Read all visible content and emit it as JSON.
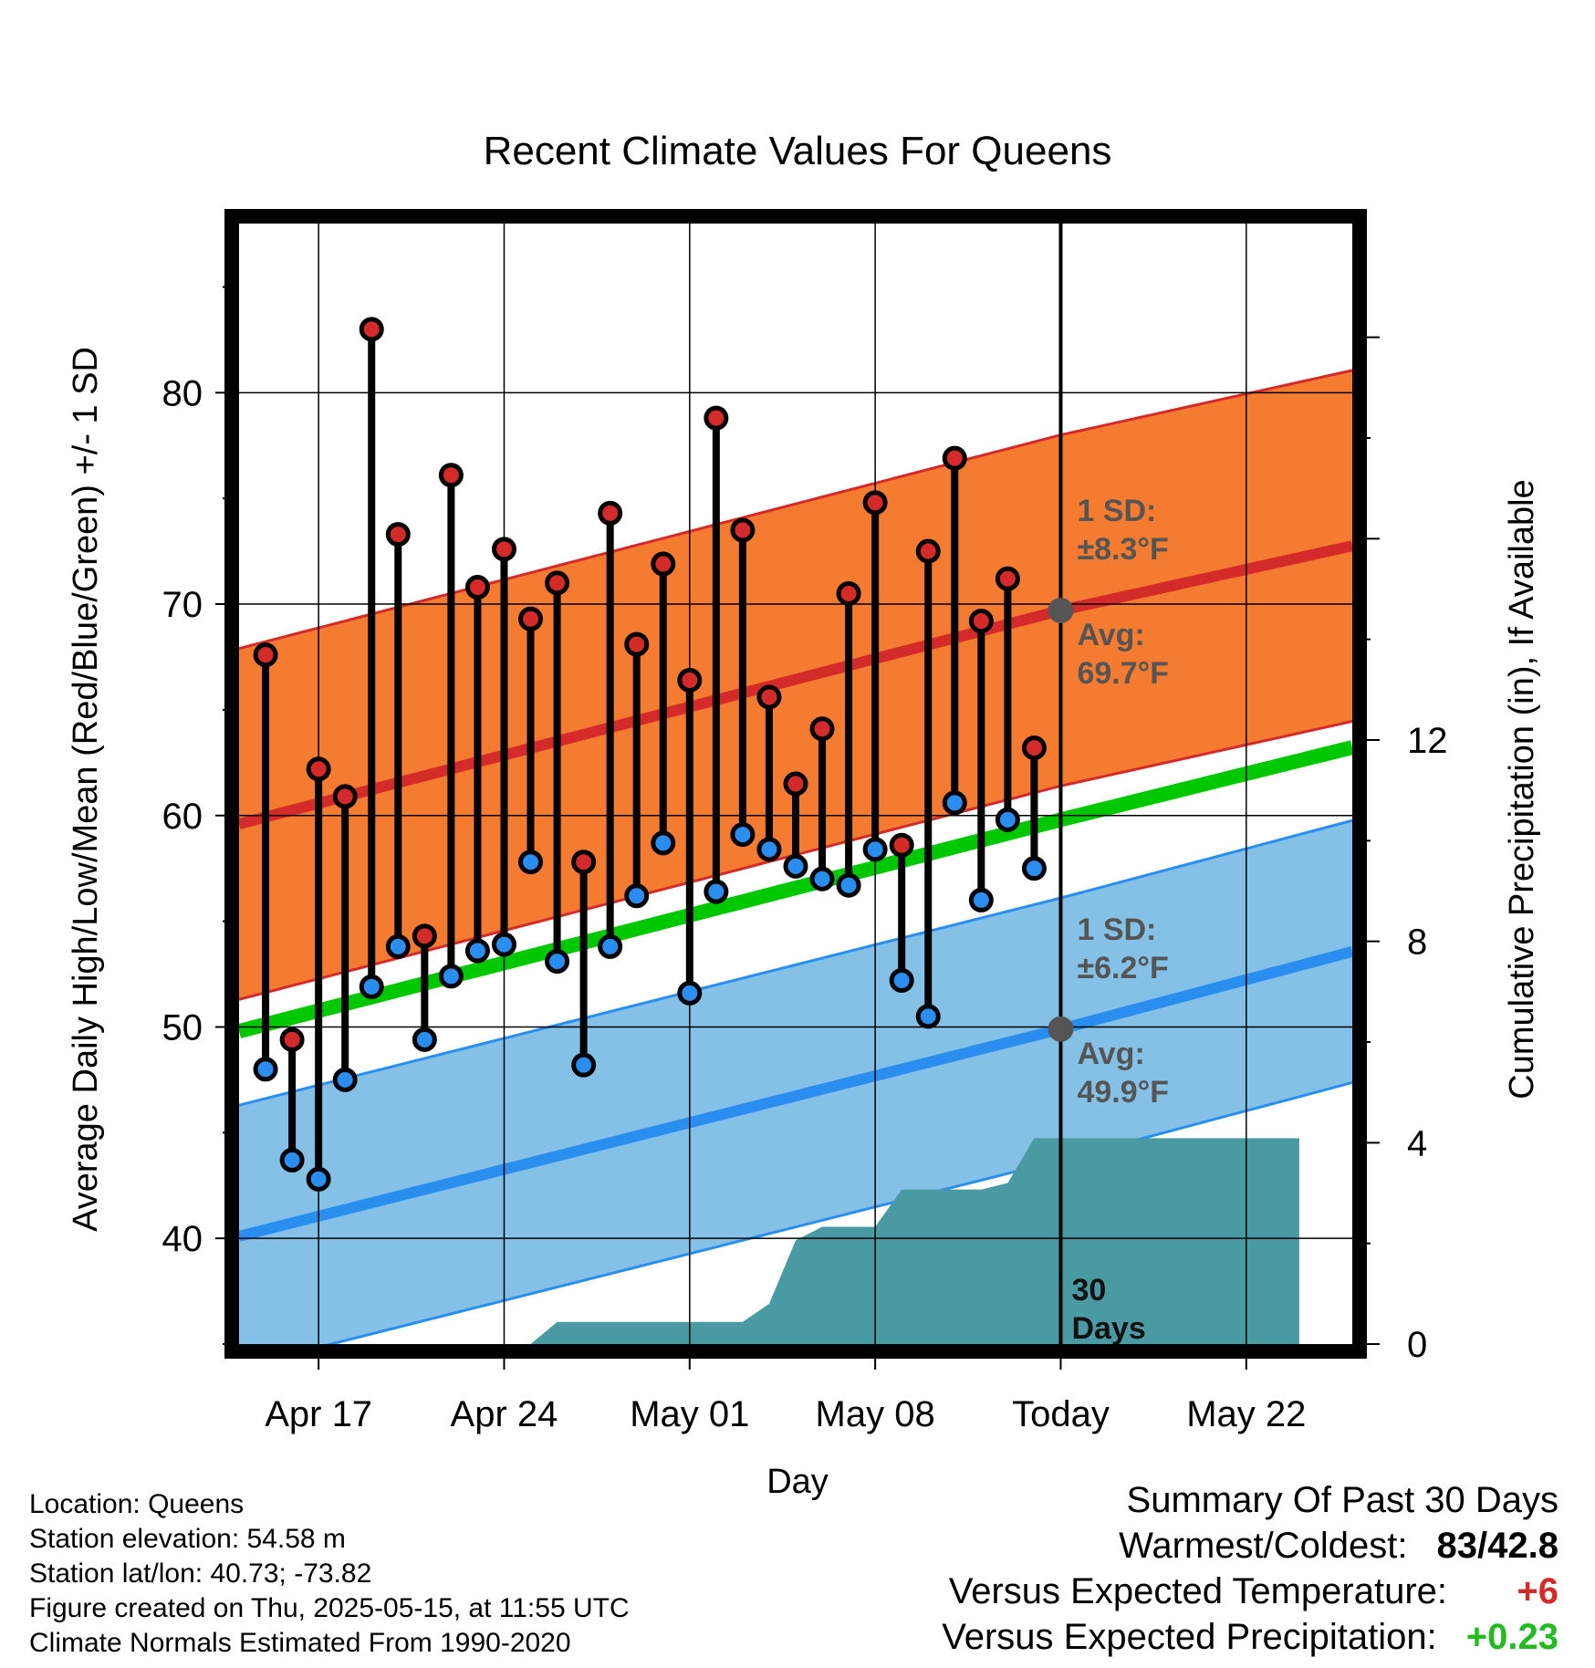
{
  "chart_data": {
    "type": "line",
    "title": "Recent Climate Values For Queens",
    "xlabel": "Day",
    "ylabel_left": "Average Daily High/Low/Mean (Red/Blue/Green) +/- 1 SD",
    "ylabel_right": "Cumulative Precipitation (in), If Available",
    "ylim_left": [
      35,
      88
    ],
    "ylim_right": [
      0,
      22.26
    ],
    "x_start_date": "2025-04-14",
    "x_end_date": "2025-05-26",
    "x_tick_labels": [
      "Apr 17",
      "Apr 24",
      "May 01",
      "May 08",
      "Today",
      "May 22"
    ],
    "x_tick_dates": [
      "2025-04-17",
      "2025-04-24",
      "2025-05-01",
      "2025-05-08",
      "2025-05-15",
      "2025-05-22"
    ],
    "y_left_ticks": [
      40,
      50,
      60,
      70,
      80
    ],
    "y_right_ticks": [
      0,
      4,
      8,
      12
    ],
    "grid": true,
    "today_date": "2025-05-15",
    "today_label": "Today",
    "window_label": "30\nDays",
    "normals": {
      "high_avg": [
        [
          "2025-04-14",
          59.6
        ],
        [
          "2025-05-15",
          69.7
        ],
        [
          "2025-05-24",
          72.2
        ]
      ],
      "high_sd": 8.3,
      "low_avg": [
        [
          "2025-04-14",
          40.1
        ],
        [
          "2025-05-15",
          49.9
        ],
        [
          "2025-05-24",
          52.9
        ]
      ],
      "low_sd": 6.2,
      "mean_avg": [
        [
          "2025-04-14",
          49.8
        ],
        [
          "2025-05-15",
          59.8
        ],
        [
          "2025-05-24",
          62.6
        ]
      ]
    },
    "daily": {
      "dates": [
        "2025-04-15",
        "2025-04-16",
        "2025-04-17",
        "2025-04-18",
        "2025-04-19",
        "2025-04-20",
        "2025-04-21",
        "2025-04-22",
        "2025-04-23",
        "2025-04-24",
        "2025-04-25",
        "2025-04-26",
        "2025-04-27",
        "2025-04-28",
        "2025-04-29",
        "2025-04-30",
        "2025-05-01",
        "2025-05-02",
        "2025-05-03",
        "2025-05-04",
        "2025-05-05",
        "2025-05-06",
        "2025-05-07",
        "2025-05-08",
        "2025-05-09",
        "2025-05-10",
        "2025-05-11",
        "2025-05-12",
        "2025-05-13",
        "2025-05-14"
      ],
      "high": [
        67.6,
        49.4,
        62.2,
        60.9,
        83.0,
        73.3,
        54.3,
        76.1,
        70.8,
        72.6,
        69.3,
        71.0,
        57.8,
        74.3,
        68.1,
        71.9,
        66.4,
        78.8,
        73.5,
        65.6,
        61.5,
        64.1,
        70.5,
        74.8,
        58.6,
        72.5,
        76.9,
        69.2,
        71.2,
        63.2
      ],
      "low": [
        48.0,
        43.7,
        42.8,
        47.5,
        51.9,
        53.8,
        49.4,
        52.4,
        53.6,
        53.9,
        57.8,
        53.1,
        48.2,
        53.8,
        56.2,
        58.7,
        51.6,
        56.4,
        59.1,
        58.4,
        57.6,
        57.0,
        56.7,
        58.4,
        52.2,
        50.5,
        60.6,
        56.0,
        59.8,
        57.5
      ]
    },
    "precipitation_cumulative": [
      [
        "2025-04-25",
        0.0
      ],
      [
        "2025-04-26",
        0.44
      ],
      [
        "2025-05-02",
        0.44
      ],
      [
        "2025-05-03",
        0.44
      ],
      [
        "2025-05-04",
        0.8
      ],
      [
        "2025-05-05",
        2.06
      ],
      [
        "2025-05-06",
        2.33
      ],
      [
        "2025-05-08",
        2.33
      ],
      [
        "2025-05-09",
        3.07
      ],
      [
        "2025-05-11",
        3.07
      ],
      [
        "2025-05-12",
        3.07
      ],
      [
        "2025-05-13",
        3.2
      ],
      [
        "2025-05-14",
        4.09
      ],
      [
        "2025-05-24",
        4.09
      ]
    ],
    "annotations": {
      "high_sd_label": "1 SD:\n±8.3°F",
      "high_avg_label": "Avg:\n69.7°F",
      "low_sd_label": "1 SD:\n±6.2°F",
      "low_avg_label": "Avg:\n49.9°F"
    },
    "colors": {
      "high_band": "#f47b30",
      "high_line": "#d42a2a",
      "low_band": "#85c1e6",
      "low_line": "#2a8ef0",
      "mean_line": "#00c800",
      "precip": "#4a9aa4",
      "high_dot": "#d42a2a",
      "low_dot": "#2a8ef0",
      "today_dot": "#555555"
    }
  },
  "info": {
    "location": "Location: Queens",
    "elevation": "Station elevation: 54.58 m",
    "latlon": "Station lat/lon: 40.73; -73.82",
    "created": "Figure created on Thu, 2025-05-15, at 11:55 UTC",
    "normals": "Climate Normals Estimated From 1990-2020"
  },
  "summary": {
    "title": "Summary Of Past 30 Days",
    "warm_cold_label": "Warmest/Coldest:",
    "warm_cold_value": "83/42.8",
    "temp_label": "Versus Expected Temperature:",
    "temp_value": "+6",
    "precip_label": "Versus Expected Precipitation:",
    "precip_value": "+0.23",
    "temp_color": "#d42a2a",
    "precip_color": "#22bb22"
  }
}
